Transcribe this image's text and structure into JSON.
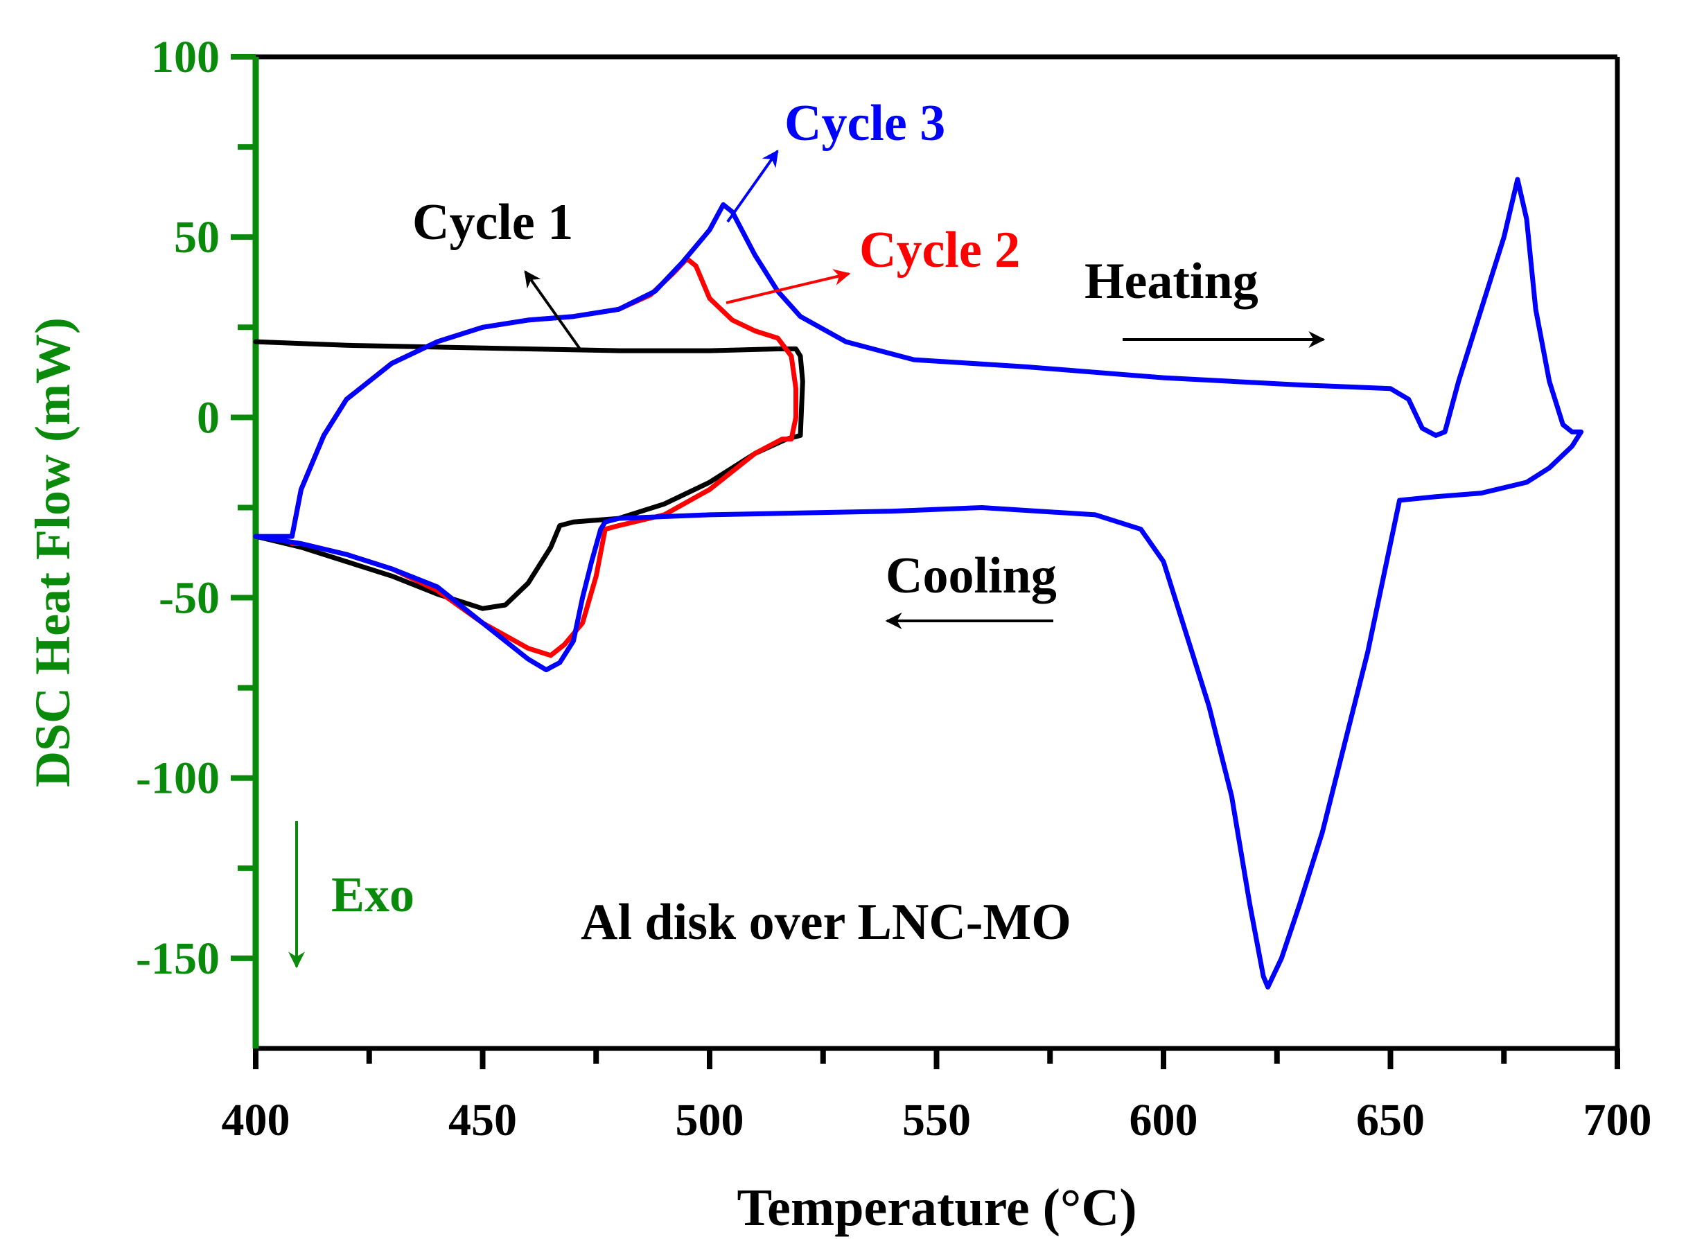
{
  "chart_data": {
    "type": "line",
    "xlabel": "Temperature (°C)",
    "ylabel": "DSC Heat Flow (mW)",
    "xlim": [
      400,
      700
    ],
    "ylim": [
      -175,
      100
    ],
    "x_ticks": [
      400,
      450,
      500,
      550,
      600,
      650,
      700
    ],
    "x_tick_labels": [
      "400",
      "450",
      "500",
      "550",
      "600",
      "650",
      "700"
    ],
    "y_ticks": [
      100,
      50,
      0,
      -50,
      -100,
      -150
    ],
    "y_tick_labels": [
      "100",
      "50",
      "0",
      "-50",
      "-100",
      "-150"
    ],
    "grid": false,
    "colors": {
      "axis_left": "#0a8a0a",
      "axis_other": "#000000",
      "cycle1": "#000000",
      "cycle2": "#ff0000",
      "cycle3": "#0000ff"
    },
    "series": [
      {
        "name": "Cycle 1",
        "color": "#000000",
        "points": [
          [
            400,
            21
          ],
          [
            420,
            20
          ],
          [
            440,
            19.5
          ],
          [
            460,
            19
          ],
          [
            480,
            18.5
          ],
          [
            500,
            18.5
          ],
          [
            515,
            19
          ],
          [
            519,
            19
          ],
          [
            520,
            17
          ],
          [
            520.5,
            10
          ],
          [
            520,
            -5
          ],
          [
            517,
            -6
          ],
          [
            510,
            -10
          ],
          [
            500,
            -18
          ],
          [
            490,
            -24
          ],
          [
            480,
            -28
          ],
          [
            470,
            -29
          ],
          [
            467,
            -30
          ],
          [
            465,
            -36
          ],
          [
            460,
            -46
          ],
          [
            455,
            -52
          ],
          [
            450,
            -53
          ],
          [
            440,
            -49
          ],
          [
            430,
            -44
          ],
          [
            420,
            -40
          ],
          [
            410,
            -36
          ],
          [
            400,
            -33
          ]
        ]
      },
      {
        "name": "Cycle 2",
        "color": "#ff0000",
        "points": [
          [
            408,
            -33
          ],
          [
            410,
            -20
          ],
          [
            415,
            -5
          ],
          [
            420,
            5
          ],
          [
            430,
            15
          ],
          [
            440,
            21
          ],
          [
            450,
            25
          ],
          [
            460,
            27
          ],
          [
            470,
            28
          ],
          [
            480,
            30
          ],
          [
            487,
            34
          ],
          [
            492,
            40
          ],
          [
            495,
            44
          ],
          [
            497,
            42
          ],
          [
            500,
            33
          ],
          [
            505,
            27
          ],
          [
            510,
            24
          ],
          [
            515,
            22
          ],
          [
            518,
            17
          ],
          [
            519,
            8
          ],
          [
            519,
            0
          ],
          [
            518,
            -6
          ],
          [
            516,
            -6
          ],
          [
            510,
            -10
          ],
          [
            500,
            -20
          ],
          [
            490,
            -27
          ],
          [
            480,
            -30
          ],
          [
            477,
            -31
          ],
          [
            475,
            -44
          ],
          [
            472,
            -57
          ],
          [
            468,
            -63
          ],
          [
            465,
            -66
          ],
          [
            460,
            -64
          ],
          [
            450,
            -57
          ],
          [
            440,
            -48
          ],
          [
            430,
            -42
          ],
          [
            420,
            -38
          ],
          [
            410,
            -35
          ],
          [
            408,
            -35
          ]
        ]
      },
      {
        "name": "Cycle 3",
        "color": "#0000ff",
        "points": [
          [
            400,
            -33
          ],
          [
            408,
            -33
          ],
          [
            410,
            -20
          ],
          [
            415,
            -5
          ],
          [
            420,
            5
          ],
          [
            430,
            15
          ],
          [
            440,
            21
          ],
          [
            450,
            25
          ],
          [
            460,
            27
          ],
          [
            470,
            28
          ],
          [
            480,
            30
          ],
          [
            488,
            35
          ],
          [
            494,
            43
          ],
          [
            500,
            52
          ],
          [
            503,
            59
          ],
          [
            505,
            57
          ],
          [
            510,
            45
          ],
          [
            515,
            35
          ],
          [
            520,
            28
          ],
          [
            530,
            21
          ],
          [
            545,
            16
          ],
          [
            570,
            14
          ],
          [
            600,
            11
          ],
          [
            630,
            9
          ],
          [
            650,
            8
          ],
          [
            654,
            5
          ],
          [
            657,
            -3
          ],
          [
            660,
            -5
          ],
          [
            662,
            -4
          ],
          [
            665,
            10
          ],
          [
            670,
            30
          ],
          [
            675,
            50
          ],
          [
            678,
            66
          ],
          [
            680,
            55
          ],
          [
            682,
            30
          ],
          [
            685,
            10
          ],
          [
            688,
            -2
          ],
          [
            690,
            -4
          ],
          [
            692,
            -4
          ],
          [
            690,
            -8
          ],
          [
            685,
            -14
          ],
          [
            680,
            -18
          ],
          [
            670,
            -21
          ],
          [
            660,
            -22
          ],
          [
            652,
            -23
          ],
          [
            650,
            -35
          ],
          [
            645,
            -65
          ],
          [
            640,
            -90
          ],
          [
            635,
            -115
          ],
          [
            630,
            -135
          ],
          [
            626,
            -150
          ],
          [
            623,
            -158
          ],
          [
            622,
            -155
          ],
          [
            619,
            -135
          ],
          [
            615,
            -105
          ],
          [
            610,
            -80
          ],
          [
            605,
            -60
          ],
          [
            600,
            -40
          ],
          [
            595,
            -31
          ],
          [
            585,
            -27
          ],
          [
            560,
            -25
          ],
          [
            540,
            -26
          ],
          [
            520,
            -26.5
          ],
          [
            500,
            -27
          ],
          [
            480,
            -28
          ],
          [
            477,
            -29
          ],
          [
            476,
            -31
          ],
          [
            474,
            -40
          ],
          [
            472,
            -50
          ],
          [
            470,
            -62
          ],
          [
            467,
            -68
          ],
          [
            464,
            -70
          ],
          [
            460,
            -67
          ],
          [
            450,
            -57
          ],
          [
            440,
            -47
          ],
          [
            430,
            -42
          ],
          [
            420,
            -38
          ],
          [
            410,
            -35
          ],
          [
            400,
            -33
          ]
        ]
      }
    ],
    "annotations": {
      "cycle1_label": "Cycle 1",
      "cycle2_label": "Cycle 2",
      "cycle3_label": "Cycle 3",
      "heating_label": "Heating",
      "cooling_label": "Cooling",
      "exo_label": "Exo",
      "sample_label": "Al disk over LNC-MO"
    }
  }
}
